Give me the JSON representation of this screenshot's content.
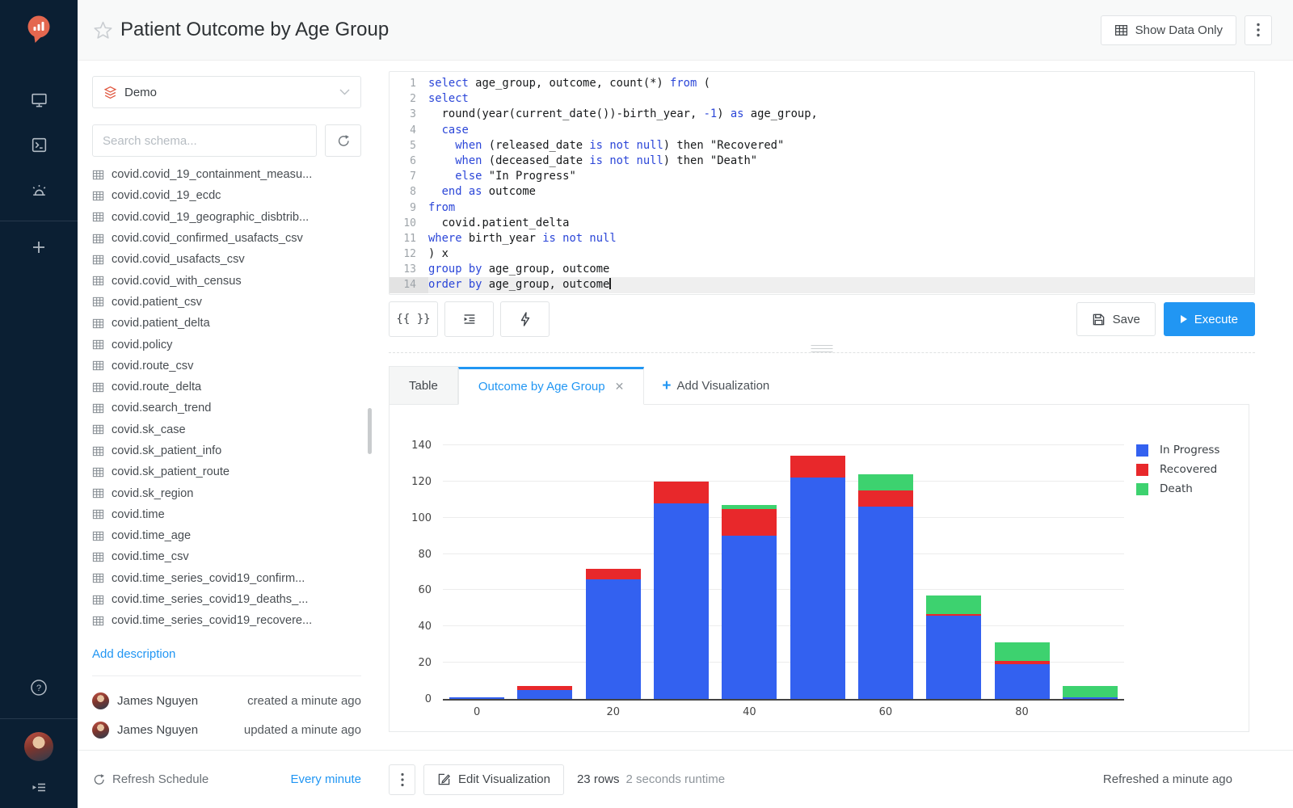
{
  "app": {
    "accent_color": "#2196f3"
  },
  "header": {
    "title": "Patient Outcome by Age Group",
    "show_data_only_label": "Show Data Only"
  },
  "icons": {
    "sidebar": [
      "redash-logo-pin",
      "dashboards-monitor",
      "queries-terminal",
      "alerts-siren",
      "plus",
      "help-circle",
      "user-avatar",
      "menu-unfold"
    ]
  },
  "source": {
    "name": "Demo"
  },
  "schema": {
    "search_placeholder": "Search schema...",
    "add_description_label": "Add description",
    "tables": [
      "covid.covid_19_containment_measu...",
      "covid.covid_19_ecdc",
      "covid.covid_19_geographic_disbtrib...",
      "covid.covid_confirmed_usafacts_csv",
      "covid.covid_usafacts_csv",
      "covid.covid_with_census",
      "covid.patient_csv",
      "covid.patient_delta",
      "covid.policy",
      "covid.route_csv",
      "covid.route_delta",
      "covid.search_trend",
      "covid.sk_case",
      "covid.sk_patient_info",
      "covid.sk_patient_route",
      "covid.sk_region",
      "covid.time",
      "covid.time_age",
      "covid.time_csv",
      "covid.time_series_covid19_confirm...",
      "covid.time_series_covid19_deaths_...",
      "covid.time_series_covid19_recovere..."
    ]
  },
  "meta": {
    "rows": [
      {
        "name": "James Nguyen",
        "event": "created a minute ago"
      },
      {
        "name": "James Nguyen",
        "event": "updated a minute ago"
      }
    ],
    "refresh_schedule_label": "Refresh Schedule",
    "refresh_schedule_value": "Every minute"
  },
  "editor": {
    "param_button_label": "{{ }}",
    "lines": [
      {
        "no": 1,
        "tokens": [
          [
            "k",
            "select "
          ],
          [
            "p",
            "age_group, outcome, count(*) "
          ],
          [
            "k",
            "from"
          ],
          [
            "p",
            " ("
          ]
        ]
      },
      {
        "no": 2,
        "tokens": [
          [
            "k",
            "select"
          ]
        ]
      },
      {
        "no": 3,
        "tokens": [
          [
            "p",
            "  round(year(current_date())-birth_year, "
          ],
          [
            "k",
            "-1"
          ],
          [
            "p",
            ") "
          ],
          [
            "k",
            "as"
          ],
          [
            "p",
            " age_group,"
          ]
        ]
      },
      {
        "no": 4,
        "tokens": [
          [
            "p",
            "  "
          ],
          [
            "k",
            "case"
          ]
        ]
      },
      {
        "no": 5,
        "tokens": [
          [
            "p",
            "    "
          ],
          [
            "k",
            "when"
          ],
          [
            "p",
            " (released_date "
          ],
          [
            "k",
            "is"
          ],
          [
            "p",
            " "
          ],
          [
            "k",
            "not"
          ],
          [
            "p",
            " "
          ],
          [
            "k",
            "null"
          ],
          [
            "p",
            ") then \"Recovered\""
          ]
        ]
      },
      {
        "no": 6,
        "tokens": [
          [
            "p",
            "    "
          ],
          [
            "k",
            "when"
          ],
          [
            "p",
            " (deceased_date "
          ],
          [
            "k",
            "is"
          ],
          [
            "p",
            " "
          ],
          [
            "k",
            "not"
          ],
          [
            "p",
            " "
          ],
          [
            "k",
            "null"
          ],
          [
            "p",
            ") then \"Death\""
          ]
        ]
      },
      {
        "no": 7,
        "tokens": [
          [
            "p",
            "    "
          ],
          [
            "k",
            "else"
          ],
          [
            "p",
            " \"In Progress\""
          ]
        ]
      },
      {
        "no": 8,
        "tokens": [
          [
            "p",
            "  "
          ],
          [
            "k",
            "end"
          ],
          [
            "p",
            " "
          ],
          [
            "k",
            "as"
          ],
          [
            "p",
            " outcome"
          ]
        ]
      },
      {
        "no": 9,
        "tokens": [
          [
            "k",
            "from"
          ]
        ]
      },
      {
        "no": 10,
        "tokens": [
          [
            "p",
            "  covid.patient_delta"
          ]
        ]
      },
      {
        "no": 11,
        "tokens": [
          [
            "k",
            "where"
          ],
          [
            "p",
            " birth_year "
          ],
          [
            "k",
            "is"
          ],
          [
            "p",
            " "
          ],
          [
            "k",
            "not"
          ],
          [
            "p",
            " "
          ],
          [
            "k",
            "null"
          ]
        ]
      },
      {
        "no": 12,
        "tokens": [
          [
            "p",
            ") x"
          ]
        ]
      },
      {
        "no": 13,
        "tokens": [
          [
            "k",
            "group"
          ],
          [
            "p",
            " "
          ],
          [
            "k",
            "by"
          ],
          [
            "p",
            " age_group, outcome"
          ]
        ]
      },
      {
        "no": 14,
        "active": true,
        "tokens": [
          [
            "k",
            "order"
          ],
          [
            "p",
            " "
          ],
          [
            "k",
            "by"
          ],
          [
            "p",
            " age_group, outcome"
          ]
        ]
      }
    ]
  },
  "actions": {
    "save_label": "Save",
    "execute_label": "Execute"
  },
  "viz": {
    "tab_table": "Table",
    "tab_active": "Outcome by Age Group",
    "add_visualization_label": "Add Visualization"
  },
  "chart_data": {
    "type": "bar",
    "stacked": true,
    "x": [
      0,
      10,
      20,
      30,
      40,
      50,
      60,
      70,
      80,
      90
    ],
    "series": [
      {
        "name": "In Progress",
        "color": "#3361f0",
        "values": [
          1,
          5,
          66,
          108,
          90,
          122,
          106,
          46,
          19,
          1
        ]
      },
      {
        "name": "Recovered",
        "color": "#e8282b",
        "values": [
          0,
          2,
          6,
          12,
          15,
          12,
          9,
          1,
          2,
          0
        ]
      },
      {
        "name": "Death",
        "color": "#3dd26f",
        "values": [
          0,
          0,
          0,
          0,
          2,
          0,
          9,
          10,
          10,
          6
        ]
      }
    ],
    "title": "",
    "xlabel": "",
    "ylabel": "",
    "ylim": [
      0,
      140
    ],
    "ytick_step": 20,
    "xticks_shown": [
      0,
      20,
      40,
      60,
      80
    ],
    "grid": true,
    "legend_position": "right"
  },
  "status": {
    "edit_visualization_label": "Edit Visualization",
    "rows": "23 rows",
    "runtime": "2 seconds runtime",
    "refreshed": "Refreshed a minute ago"
  }
}
